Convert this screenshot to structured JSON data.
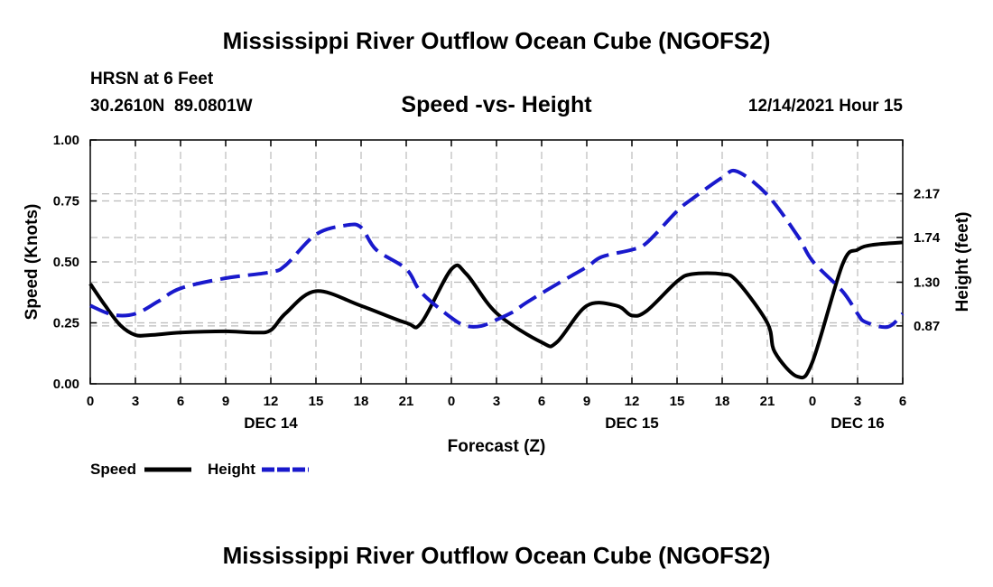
{
  "page": {
    "title": "Mississippi River Outflow Ocean Cube (NGOFS2)",
    "footer_title": "Mississippi River Outflow Ocean Cube (NGOFS2)",
    "station": "HRSN at 6 Feet",
    "coords": "30.2610N  89.0801W",
    "chart_title": "Speed -vs- Height",
    "datetime": "12/14/2021 Hour 15"
  },
  "chart_data": {
    "type": "line",
    "title": "Speed -vs- Height",
    "xlabel": "Forecast (Z)",
    "ylabel": "Speed (Knots)",
    "y2label": "Height (feet)",
    "xlim": [
      0,
      54
    ],
    "ylim": [
      0,
      1
    ],
    "y2lim": [
      0.3,
      2.7
    ],
    "x_ticks": [
      0,
      3,
      6,
      9,
      12,
      15,
      18,
      21,
      24,
      27,
      30,
      33,
      36,
      39,
      42,
      45,
      48,
      51,
      54
    ],
    "x_tick_labels": [
      "0",
      "3",
      "6",
      "9",
      "12",
      "15",
      "18",
      "21",
      "0",
      "3",
      "6",
      "9",
      "12",
      "15",
      "18",
      "21",
      "0",
      "3",
      "6"
    ],
    "day_labels": [
      {
        "x": 12,
        "label": "DEC 14"
      },
      {
        "x": 36,
        "label": "DEC 15"
      },
      {
        "x": 51,
        "label": "DEC 16"
      }
    ],
    "y_ticks": [
      0,
      0.25,
      0.5,
      0.75,
      1.0
    ],
    "y_tick_labels": [
      "0.00",
      "0.25",
      "0.50",
      "0.75",
      "1.00"
    ],
    "y2_ticks": [
      0.87,
      1.3,
      1.74,
      2.17
    ],
    "y2_tick_labels": [
      "0.87",
      "1.30",
      "1.74",
      "2.17"
    ],
    "grid": true,
    "legend_position": "bottom-left",
    "series": [
      {
        "name": "Speed",
        "axis": "left",
        "color": "#000000",
        "style": "solid",
        "x": [
          0,
          1,
          2,
          3,
          4,
          6,
          9,
          11,
          12,
          13,
          15,
          18,
          21,
          22,
          24,
          25,
          27,
          30,
          31,
          33,
          35,
          36,
          37,
          39,
          40,
          42,
          43,
          45,
          45.5,
          47,
          48,
          50,
          51,
          52,
          54
        ],
        "values": [
          0.41,
          0.32,
          0.24,
          0.2,
          0.2,
          0.21,
          0.215,
          0.21,
          0.22,
          0.29,
          0.38,
          0.32,
          0.25,
          0.25,
          0.47,
          0.45,
          0.29,
          0.17,
          0.17,
          0.32,
          0.32,
          0.28,
          0.3,
          0.42,
          0.45,
          0.45,
          0.42,
          0.25,
          0.13,
          0.03,
          0.09,
          0.49,
          0.55,
          0.57,
          0.58
        ]
      },
      {
        "name": "Height",
        "axis": "right",
        "color": "#1919cc",
        "style": "dashed",
        "x": [
          0,
          1.5,
          3,
          4.5,
          6,
          9,
          12,
          13,
          15,
          17,
          18,
          19,
          21,
          22,
          24,
          25,
          26,
          27,
          28,
          29,
          31,
          33,
          34,
          36,
          37,
          39,
          40,
          42,
          43,
          45,
          47,
          48,
          50,
          51,
          51.5,
          53,
          54
        ],
        "values": [
          1.07,
          0.98,
          0.99,
          1.11,
          1.24,
          1.34,
          1.4,
          1.47,
          1.77,
          1.86,
          1.84,
          1.62,
          1.43,
          1.2,
          0.95,
          0.87,
          0.87,
          0.93,
          1.0,
          1.1,
          1.28,
          1.45,
          1.55,
          1.62,
          1.69,
          2.0,
          2.12,
          2.33,
          2.39,
          2.16,
          1.76,
          1.51,
          1.21,
          0.99,
          0.91,
          0.86,
          0.99
        ]
      }
    ]
  }
}
